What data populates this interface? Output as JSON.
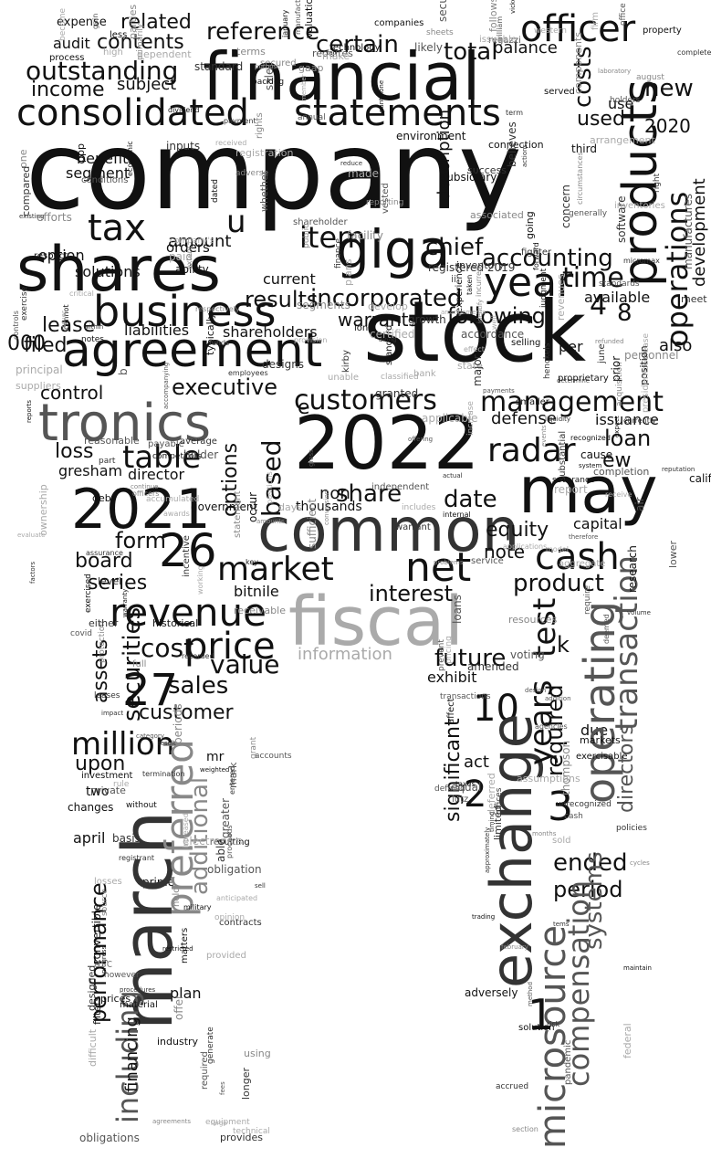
{
  "words": {
    "company": "company",
    "financial": "financial",
    "stock": "stock",
    "shares": "shares",
    "agreement": "agreement",
    "consolidated": "consolidated",
    "statements": "statements",
    "products": "products",
    "giga": "giga",
    "business": "business",
    "operations": "operations",
    "tronics": "tronics",
    "common": "common",
    "y2022": "2022",
    "y2021": "2021",
    "may": "may",
    "march": "march",
    "exchange": "exchange",
    "fiscal": "fiscal",
    "revenue": "revenue",
    "market": "market",
    "net": "net",
    "cash": "cash",
    "customers": "customers",
    "management": "management",
    "radar": "radar",
    "operating": "operating",
    "microsource": "microsource",
    "compensation": "compensation",
    "transaction": "transaction",
    "preferred": "preferred",
    "additional": "additional",
    "including": "including",
    "performance": "performance",
    "million": "million",
    "securities": "securities",
    "price": "price",
    "sales": "sales",
    "n26": "26",
    "n27": "27",
    "n10": "10",
    "n2": "2",
    "n3": "3",
    "n1": "1",
    "n4": "4",
    "n8": "8",
    "n000": "000",
    "officer": "officer",
    "total": "total",
    "reference": "reference",
    "related": "related",
    "contents": "contents",
    "certain": "certain",
    "outstanding": "outstanding",
    "income": "income",
    "costs": "costs",
    "new": "new",
    "tax": "tax",
    "year": "year",
    "time": "time",
    "item": "item",
    "chief": "chief",
    "accounting": "accounting",
    "incorporated": "incorporated",
    "results": "results",
    "lease": "lease",
    "filed": "filed",
    "warrants": "warrants",
    "following": "following",
    "shareholders": "shareholders",
    "liabilities": "liabilities",
    "executive": "executive",
    "control": "control",
    "table": "table",
    "loss": "loss",
    "based": "based",
    "options": "options",
    "form": "form",
    "series": "series",
    "board": "board",
    "interest": "interest",
    "product": "product",
    "future": "future",
    "value": "value",
    "cost": "cost",
    "assets": "assets",
    "customer": "customer",
    "upon": "upon",
    "years": "years",
    "test": "test",
    "ended": "ended",
    "period": "period",
    "significant": "significant",
    "share": "share",
    "date": "date",
    "loan": "loan",
    "equity": "equity",
    "note": "note",
    "information": "information",
    "exhibit": "exhibit",
    "directors": "directors",
    "systems": "systems",
    "required": "required",
    "defense": "defense",
    "issuance": "issuance",
    "development": "development",
    "also": "also",
    "available": "available",
    "used": "used",
    "use": "use",
    "n2020": "2020",
    "amount": "amount",
    "current": "current",
    "solutions": "solutions",
    "services": "services",
    "option": "option",
    "segment": "segment",
    "benefits": "benefits",
    "audit": "audit",
    "subject": "subject",
    "expense": "expense",
    "balance": "balance",
    "description": "description",
    "gresham": "gresham",
    "director": "director",
    "bitnile": "bitnile",
    "mr": "mr",
    "two": "two",
    "changes": "changes",
    "april": "april",
    "prime": "prime",
    "plan": "plan",
    "financing": "financing",
    "k": "k",
    "u": "u",
    "e": "e",
    "ew": "ew",
    "per": "per",
    "thousands": "thousands",
    "non": "non",
    "act": "act",
    "due": "due",
    "capital": "capital",
    "orders": "orders",
    "small": [
      "state",
      "associated",
      "smaller",
      "paid",
      "assurance",
      "receive",
      "b",
      "awards",
      "connection",
      "holder",
      "valuation",
      "controls",
      "aggregate",
      "regazzi",
      "effect",
      "sheets",
      "thompson",
      "facility",
      "critical",
      "standards",
      "suppliers",
      "june",
      "lutz",
      "protection",
      "entered",
      "registration",
      "determine",
      "acquisition",
      "ppp",
      "offices",
      "decrease",
      "manufactures",
      "increased",
      "identify",
      "level",
      "prevent",
      "bank",
      "standard",
      "completed",
      "personnel",
      "model",
      "addition",
      "provided",
      "software",
      "revenues",
      "deferred",
      "forward",
      "key",
      "primarily",
      "pricing",
      "affect",
      "gaap",
      "company's",
      "service",
      "timing",
      "procedures",
      "obligations",
      "sold",
      "success",
      "fair",
      "california",
      "events",
      "experience",
      "cannot",
      "notes",
      "august",
      "one",
      "inventory",
      "exercise",
      "member",
      "concern",
      "liquidity",
      "accounts",
      "loans",
      "method",
      "classified",
      "lower",
      "leases",
      "progress",
      "circumstances",
      "micromax",
      "public",
      "assumptions",
      "proceeds",
      "requires",
      "therefore",
      "right",
      "reasonable",
      "companies",
      "reports",
      "technical",
      "holders",
      "contracts",
      "category",
      "employees",
      "markets",
      "investment",
      "registered 2019",
      "adversely",
      "dated",
      "currently",
      "transactions",
      "respectively",
      "private",
      "principal",
      "generally",
      "property",
      "risk",
      "limited",
      "days",
      "reporting",
      "made",
      "military",
      "annual",
      "historical",
      "arrangement",
      "henckels",
      "difficult",
      "expect",
      "source",
      "accordance",
      "result",
      "report",
      "resources",
      "office",
      "inputs",
      "exercised",
      "william",
      "vested",
      "kirby",
      "inventories",
      "environment",
      "issuer",
      "mark",
      "without",
      "likely",
      "believes",
      "full",
      "solution",
      "gain",
      "vickers",
      "includes",
      "incurred",
      "received",
      "become",
      "accumulated",
      "reputation",
      "sufficient",
      "recorded",
      "fighter",
      "termination",
      "ownership",
      "position",
      "ii",
      "issuable",
      "typically",
      "losses",
      "january",
      "either",
      "weighted",
      "working",
      "firm",
      "segments",
      "cycles",
      "long",
      "required",
      "accrued",
      "substantial",
      "agreements",
      "pandemic",
      "offering",
      "respect",
      "problems",
      "equal",
      "internal",
      "technology",
      "plans",
      "design",
      "president",
      "payable",
      "receivable",
      "judgment",
      "research",
      "terms",
      "air",
      "shareholder",
      "taken",
      "cause",
      "gross",
      "sale",
      "selling",
      "refunded",
      "finance",
      "equipment",
      "obligation",
      "whether",
      "resulting",
      "deemed",
      "designs",
      "severance",
      "material",
      "federal",
      "major",
      "dividend",
      "volume",
      "develop",
      "pantalone",
      "debt",
      "security",
      "approximately",
      "generate",
      "conditions",
      "proprietary",
      "offer",
      "government",
      "electronics",
      "officers",
      "agencies",
      "make",
      "matters",
      "system",
      "process",
      "parties",
      "industry",
      "less",
      "backlog",
      "dependent",
      "independent",
      "existing",
      "competitors",
      "subsidiary",
      "meet",
      "high",
      "maintain",
      "term",
      "section",
      "fees",
      "conversion",
      "payments",
      "actual",
      "provision",
      "rule",
      "convertible",
      "continue",
      "components",
      "positions",
      "unrecognized",
      "held",
      "completion",
      "policies",
      "follows",
      "defined",
      "using",
      "opinion",
      "ability",
      "recognized",
      "sell",
      "payment",
      "february",
      "statement",
      "applicable",
      "cash",
      "warrant",
      "amended",
      "tems",
      "compared",
      "adverse",
      "average",
      "granted",
      "grant",
      "extent",
      "longer",
      "restricted",
      "part",
      "prior",
      "provides",
      "registrant",
      "actions",
      "however",
      "filters",
      "designed",
      "purpose",
      "growth",
      "evaluate",
      "economic",
      "efforts",
      "western",
      "months",
      "funds",
      "unable",
      "taxes",
      "asc",
      "occur",
      "served",
      "reduce",
      "going",
      "third",
      "amounts",
      "applications",
      "within",
      "impact",
      "require",
      "factors",
      "exercisable",
      "voting",
      "large",
      "incentive",
      "well",
      "basis",
      "along",
      "trading",
      "greater",
      "prices",
      "increase",
      "rights",
      "laboratory",
      "secured",
      "warranty",
      "periods",
      "standard",
      "accompanying",
      "manufacturing",
      "anticipated",
      "able",
      "arrangements",
      "covid",
      "certified"
    ]
  },
  "colors": {
    "ink": "#111111",
    "dark": "#333333",
    "mid": "#555555",
    "light": "#888888",
    "faint": "#aaaaaa",
    "background": "#ffffff"
  }
}
